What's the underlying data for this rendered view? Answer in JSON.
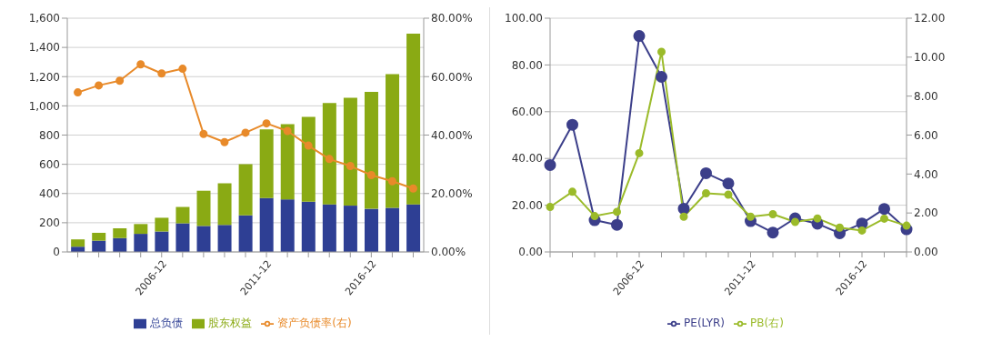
{
  "chart_data": [
    {
      "type": "bar",
      "stacked": true,
      "categories": [
        null,
        null,
        null,
        null,
        "2006-12",
        null,
        null,
        null,
        null,
        "2011-12",
        null,
        null,
        null,
        null,
        "2016-12",
        null,
        null
      ],
      "series": [
        {
          "name": "总负债",
          "color": "#2e3f94",
          "values": [
            36,
            77,
            95,
            124,
            140,
            196,
            178,
            185,
            250,
            369,
            360,
            344,
            326,
            317,
            295,
            302,
            326
          ]
        },
        {
          "name": "股东权益",
          "color": "#8aaa14",
          "values": [
            50,
            54,
            67,
            67,
            94,
            112,
            241,
            285,
            351,
            470,
            515,
            581,
            693,
            738,
            801,
            915,
            1168
          ]
        },
        {
          "name": "资产负债率(右)",
          "type": "line",
          "axis": "y2",
          "color": "#e88a2a",
          "values": [
            54.6,
            57.0,
            58.6,
            64.2,
            61.1,
            62.7,
            40.4,
            37.6,
            40.8,
            44.0,
            41.4,
            36.4,
            31.8,
            29.4,
            26.3,
            24.2,
            21.7
          ]
        }
      ],
      "ylim": [
        0,
        1600
      ],
      "yticks": [
        0,
        200,
        400,
        600,
        800,
        {
          "value": 1000,
          "label": "1,000"
        },
        {
          "value": 1200,
          "label": "1,200"
        },
        {
          "value": 1400,
          "label": "1,400"
        },
        {
          "value": 1600,
          "label": "1,600"
        }
      ],
      "y2lim": [
        0,
        80
      ],
      "y2ticks": [
        {
          "value": 0,
          "label": "0.00%"
        },
        {
          "value": 20,
          "label": "20.00%"
        },
        {
          "value": 40,
          "label": "40.00%"
        },
        {
          "value": 60,
          "label": "60.00%"
        },
        {
          "value": 80,
          "label": "80.00%"
        }
      ],
      "grid": "y",
      "legend": "bottom",
      "marker": "circle"
    },
    {
      "type": "line",
      "categories": [
        null,
        null,
        null,
        null,
        "2006-12",
        null,
        null,
        null,
        null,
        "2011-12",
        null,
        null,
        null,
        null,
        "2016-12",
        null,
        null
      ],
      "series": [
        {
          "name": "PE(LYR)",
          "color": "#3c3f8a",
          "values": [
            37.2,
            54.4,
            13.6,
            11.6,
            92.4,
            74.9,
            18.5,
            33.7,
            29.3,
            13.2,
            8.3,
            14.4,
            12.1,
            8.0,
            12.2,
            18.4,
            9.7
          ]
        },
        {
          "name": "PB(右)",
          "axis": "y2",
          "color": "#9bbb2a",
          "values": [
            2.31,
            3.09,
            1.84,
            2.06,
            5.07,
            10.27,
            1.81,
            3.01,
            2.94,
            1.81,
            1.94,
            1.54,
            1.72,
            1.25,
            1.1,
            1.71,
            1.35
          ]
        }
      ],
      "ylim": [
        0,
        100
      ],
      "yticks": [
        {
          "value": 0,
          "label": "0.00"
        },
        {
          "value": 20,
          "label": "20.00"
        },
        {
          "value": 40,
          "label": "40.00"
        },
        {
          "value": 60,
          "label": "60.00"
        },
        {
          "value": 80,
          "label": "80.00"
        },
        {
          "value": 100,
          "label": "100.00"
        }
      ],
      "y2lim": [
        0,
        12
      ],
      "y2ticks": [
        {
          "value": 0,
          "label": "0.00"
        },
        {
          "value": 2,
          "label": "2.00"
        },
        {
          "value": 4,
          "label": "4.00"
        },
        {
          "value": 6,
          "label": "6.00"
        },
        {
          "value": 8,
          "label": "8.00"
        },
        {
          "value": 10,
          "label": "10.00"
        },
        {
          "value": 12,
          "label": "12.00"
        }
      ],
      "grid": "y",
      "legend": "bottom",
      "marker": "circle"
    }
  ]
}
